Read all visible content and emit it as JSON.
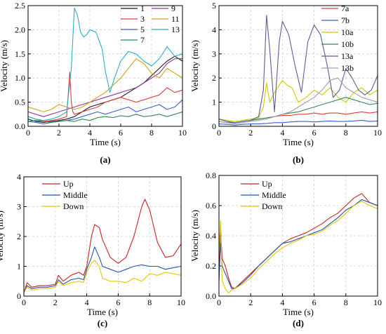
{
  "chart_data": [
    {
      "type": "line",
      "caption": "(a)",
      "xlabel": "Time (s)",
      "ylabel": "Velocity (m/s)",
      "xlim": [
        0,
        10
      ],
      "ylim": [
        0,
        2.5
      ],
      "xticks": [
        "0",
        "2",
        "4",
        "6",
        "8",
        "10"
      ],
      "yticks": [
        "0.0",
        "0.5",
        "1.0",
        "1.5",
        "2.0",
        "2.5"
      ],
      "grid": true,
      "legend": {
        "placement": "top-right",
        "columns": 2
      },
      "series": [
        {
          "name": "1",
          "color": "#1a1a1a",
          "x": [
            0,
            0.5,
            1,
            1.5,
            2,
            2.5,
            3,
            3.5,
            4,
            4.5,
            5,
            5.5,
            6,
            6.5,
            7,
            7.5,
            8,
            8.5,
            9,
            9.5,
            10
          ],
          "y": [
            0.15,
            0.1,
            0.08,
            0.1,
            0.12,
            0.15,
            0.2,
            0.3,
            0.4,
            0.45,
            0.5,
            0.55,
            0.6,
            0.7,
            0.8,
            0.9,
            1.05,
            1.2,
            1.35,
            1.45,
            1.35
          ]
        },
        {
          "name": "3",
          "color": "#e03c3c",
          "x": [
            0,
            0.5,
            1,
            1.5,
            2,
            2.5,
            2.7,
            2.8,
            2.9,
            3,
            3.5,
            4,
            4.5,
            5,
            5.5,
            6,
            6.5,
            7,
            7.5,
            8,
            8.5,
            9,
            9.5,
            10
          ],
          "y": [
            0.2,
            0.15,
            0.1,
            0.12,
            0.15,
            0.2,
            1.12,
            0.5,
            0.3,
            0.25,
            0.3,
            0.35,
            0.4,
            0.5,
            0.55,
            0.6,
            0.55,
            0.5,
            0.55,
            0.6,
            0.65,
            0.8,
            0.7,
            0.75
          ]
        },
        {
          "name": "5",
          "color": "#3a5fcd",
          "x": [
            0,
            0.5,
            1,
            1.5,
            2,
            2.5,
            3,
            3.5,
            4,
            4.5,
            5,
            5.5,
            6,
            6.5,
            7,
            7.5,
            8,
            8.5,
            9,
            9.5,
            10
          ],
          "y": [
            0.1,
            0.08,
            0.05,
            0.08,
            0.1,
            0.12,
            0.15,
            0.2,
            0.25,
            0.3,
            0.25,
            0.3,
            0.35,
            0.4,
            0.3,
            0.35,
            0.4,
            0.45,
            0.35,
            0.4,
            0.55
          ]
        },
        {
          "name": "7",
          "color": "#2e8b57",
          "x": [
            0,
            0.5,
            1,
            1.5,
            2,
            2.5,
            3,
            3.5,
            4,
            4.5,
            5,
            5.5,
            6,
            6.5,
            7,
            7.5,
            8,
            8.5,
            9,
            9.5,
            10
          ],
          "y": [
            0.1,
            0.12,
            0.1,
            0.08,
            0.1,
            0.12,
            0.1,
            0.15,
            0.12,
            0.18,
            0.2,
            0.18,
            0.22,
            0.2,
            0.25,
            0.2,
            0.22,
            0.25,
            0.2,
            0.25,
            0.3
          ]
        },
        {
          "name": "9",
          "color": "#8b3a9c",
          "x": [
            0,
            0.5,
            1,
            1.5,
            2,
            2.5,
            3,
            3.5,
            4,
            4.5,
            5,
            5.5,
            6,
            6.5,
            7,
            7.5,
            8,
            8.5,
            9,
            9.5,
            10
          ],
          "y": [
            0.3,
            0.25,
            0.2,
            0.25,
            0.3,
            0.35,
            0.4,
            0.45,
            0.5,
            0.55,
            0.6,
            0.65,
            0.7,
            0.75,
            0.8,
            0.9,
            1.0,
            1.1,
            1.3,
            1.4,
            1.4
          ]
        },
        {
          "name": "11",
          "color": "#d4a017",
          "x": [
            0,
            0.5,
            1,
            1.5,
            2,
            2.5,
            3,
            3.5,
            4,
            4.5,
            5,
            5.5,
            6,
            6.5,
            7,
            7.5,
            8,
            8.5,
            9,
            9.5,
            10
          ],
          "y": [
            0.4,
            0.35,
            0.3,
            0.35,
            0.45,
            0.4,
            0.35,
            0.4,
            0.5,
            0.6,
            0.7,
            0.85,
            1.0,
            1.2,
            1.4,
            1.3,
            1.1,
            1.0,
            1.2,
            1.1,
            1.0
          ]
        },
        {
          "name": "13",
          "color": "#2ab0c8",
          "x": [
            0,
            0.5,
            1,
            1.5,
            2,
            2.5,
            2.8,
            3.0,
            3.2,
            3.4,
            3.6,
            3.8,
            4.0,
            4.4,
            4.8,
            5.0,
            5.3,
            5.6,
            6.0,
            6.5,
            7.0,
            7.5,
            8.0,
            8.5,
            9.0,
            9.5,
            10
          ],
          "y": [
            0.2,
            0.15,
            0.12,
            0.15,
            0.2,
            0.3,
            1.2,
            2.45,
            2.3,
            1.95,
            1.85,
            1.9,
            2.0,
            1.95,
            1.6,
            1.15,
            0.7,
            1.0,
            1.35,
            1.55,
            1.5,
            1.35,
            1.25,
            1.4,
            1.65,
            1.45,
            1.5
          ]
        }
      ]
    },
    {
      "type": "line",
      "caption": "(b)",
      "xlabel": "Time (s)",
      "ylabel": "Velocity (m/s)",
      "xlim": [
        0,
        10
      ],
      "ylim": [
        0,
        5
      ],
      "xticks": [
        "0",
        "2",
        "4",
        "6",
        "8",
        "10"
      ],
      "yticks": [
        "0",
        "1",
        "2",
        "3",
        "4",
        "5"
      ],
      "grid": true,
      "legend": {
        "placement": "top-right",
        "columns": 1
      },
      "series": [
        {
          "name": "7a",
          "color": "#e03c3c",
          "x": [
            0,
            0.5,
            1,
            1.5,
            2,
            2.5,
            3,
            3.5,
            4,
            4.5,
            5,
            5.5,
            6,
            6.5,
            7,
            7.5,
            8,
            8.5,
            9,
            9.5,
            10
          ],
          "y": [
            0.3,
            0.2,
            0.15,
            0.2,
            0.25,
            0.3,
            0.35,
            0.4,
            0.45,
            0.45,
            0.5,
            0.5,
            0.55,
            0.5,
            0.55,
            0.55,
            0.5,
            0.55,
            0.6,
            0.55,
            0.6
          ]
        },
        {
          "name": "7b",
          "color": "#3a5fcd",
          "x": [
            0,
            0.5,
            1,
            1.5,
            2,
            2.5,
            3,
            3.5,
            4,
            4.5,
            5,
            5.5,
            6,
            6.5,
            7,
            7.5,
            8,
            8.5,
            9,
            9.5,
            10
          ],
          "y": [
            0.1,
            0.08,
            0.05,
            0.08,
            0.1,
            0.1,
            0.12,
            0.15,
            0.15,
            0.18,
            0.2,
            0.2,
            0.18,
            0.2,
            0.22,
            0.2,
            0.2,
            0.22,
            0.25,
            0.2,
            0.22
          ]
        },
        {
          "name": "10a",
          "color": "#d4c800",
          "x": [
            0,
            0.5,
            1,
            1.5,
            2,
            2.5,
            2.8,
            3.0,
            3.2,
            3.5,
            4.0,
            4.3,
            4.6,
            5.0,
            5.5,
            6.0,
            6.5,
            7.0,
            7.5,
            8.0,
            8.5,
            9.0,
            9.5,
            10
          ],
          "y": [
            0.3,
            0.25,
            0.2,
            0.25,
            0.3,
            0.35,
            0.8,
            1.8,
            1.0,
            1.4,
            1.9,
            1.7,
            1.6,
            1.0,
            1.2,
            1.5,
            1.3,
            1.6,
            1.2,
            1.0,
            1.4,
            1.6,
            1.3,
            1.5
          ]
        },
        {
          "name": "10b",
          "color": "#2e8b57",
          "x": [
            0,
            0.5,
            1,
            1.5,
            2,
            2.5,
            3,
            3.5,
            4,
            4.5,
            5,
            5.5,
            6,
            6.5,
            7,
            7.5,
            8,
            8.5,
            9,
            9.5,
            10
          ],
          "y": [
            0.2,
            0.15,
            0.15,
            0.2,
            0.25,
            0.3,
            0.35,
            0.4,
            0.5,
            0.55,
            0.6,
            0.7,
            0.8,
            0.9,
            1.0,
            1.1,
            1.2,
            1.1,
            1.0,
            0.9,
            0.95
          ]
        },
        {
          "name": "13a",
          "color": "#5c5c9c",
          "x": [
            0,
            0.5,
            1,
            1.5,
            2,
            2.5,
            2.8,
            3.0,
            3.2,
            3.5,
            3.8,
            4.0,
            4.4,
            4.8,
            5.2,
            5.6,
            6.0,
            6.4,
            6.8,
            7.2,
            7.6,
            8.0,
            8.4,
            8.8,
            9.2,
            9.6,
            10
          ],
          "y": [
            0.3,
            0.2,
            0.15,
            0.2,
            0.25,
            0.4,
            1.5,
            4.6,
            3.2,
            0.6,
            3.5,
            4.35,
            3.8,
            2.5,
            1.4,
            3.5,
            4.2,
            3.8,
            2.6,
            1.2,
            1.5,
            2.4,
            2.0,
            1.5,
            1.3,
            1.5,
            2.1
          ]
        },
        {
          "name": "13b",
          "color": "#a0a0b0",
          "x": [
            0,
            0.5,
            1,
            1.5,
            2,
            2.5,
            3,
            3.5,
            4,
            4.5,
            5,
            5.5,
            6,
            6.5,
            7,
            7.5,
            8,
            8.5,
            9,
            9.5,
            10
          ],
          "y": [
            0.2,
            0.15,
            0.1,
            0.15,
            0.2,
            0.25,
            0.3,
            0.4,
            0.5,
            0.6,
            0.8,
            1.0,
            1.2,
            1.5,
            1.9,
            2.0,
            1.6,
            1.4,
            1.2,
            1.1,
            1.0
          ]
        }
      ]
    },
    {
      "type": "line",
      "caption": "(c)",
      "xlabel": "Time (s)",
      "ylabel": "Velocity (m/s)",
      "xlim": [
        0,
        10
      ],
      "ylim": [
        0,
        4
      ],
      "xticks": [
        "0",
        "2",
        "4",
        "6",
        "8",
        "10"
      ],
      "yticks": [
        "0",
        "1",
        "2",
        "3",
        "4"
      ],
      "grid": true,
      "legend": {
        "placement": "top-left",
        "columns": 1
      },
      "series": [
        {
          "name": "Up",
          "color": "#cc2222",
          "x": [
            0,
            0.2,
            0.5,
            1,
            1.5,
            2,
            2.2,
            2.5,
            3,
            3.5,
            3.8,
            4,
            4.3,
            4.5,
            4.8,
            5,
            5.5,
            6,
            6.5,
            7,
            7.5,
            7.7,
            8,
            8.5,
            9,
            9.5,
            10
          ],
          "y": [
            0.1,
            0.45,
            0.3,
            0.35,
            0.35,
            0.4,
            0.7,
            0.5,
            0.7,
            0.8,
            0.7,
            1.0,
            2.0,
            2.4,
            2.3,
            1.9,
            1.3,
            1.1,
            1.3,
            2.0,
            3.0,
            3.25,
            2.9,
            1.8,
            1.3,
            1.35,
            1.75
          ]
        },
        {
          "name": "Middle",
          "color": "#2255aa",
          "x": [
            0,
            0.2,
            0.5,
            1,
            1.5,
            2,
            2.2,
            2.5,
            3,
            3.5,
            3.8,
            4,
            4.3,
            4.5,
            4.8,
            5,
            5.5,
            6,
            6.5,
            7,
            7.5,
            8,
            8.5,
            9,
            9.5,
            10
          ],
          "y": [
            0.1,
            0.35,
            0.25,
            0.3,
            0.3,
            0.35,
            0.55,
            0.4,
            0.55,
            0.6,
            0.55,
            0.9,
            1.3,
            1.65,
            1.3,
            1.0,
            0.9,
            0.8,
            0.9,
            1.0,
            1.05,
            1.0,
            1.0,
            0.9,
            0.95,
            1.0
          ]
        },
        {
          "name": "Down",
          "color": "#e8c800",
          "x": [
            0,
            0.2,
            0.5,
            1,
            1.5,
            2,
            2.2,
            2.5,
            3,
            3.5,
            3.8,
            4,
            4.3,
            4.5,
            4.8,
            5,
            5.5,
            6,
            6.5,
            7,
            7.5,
            8,
            8.5,
            9,
            9.5,
            10
          ],
          "y": [
            0.1,
            0.3,
            0.2,
            0.25,
            0.25,
            0.3,
            0.5,
            0.35,
            0.45,
            0.5,
            0.45,
            0.8,
            1.1,
            1.2,
            1.0,
            0.6,
            0.5,
            0.5,
            0.45,
            0.6,
            0.5,
            0.75,
            0.7,
            0.8,
            0.75,
            0.7
          ]
        }
      ]
    },
    {
      "type": "line",
      "caption": "(d)",
      "xlabel": "Time (s)",
      "ylabel": "Velocity (m/s)",
      "xlim": [
        0,
        10
      ],
      "ylim": [
        0,
        0.8
      ],
      "xticks": [
        "0",
        "2",
        "4",
        "6",
        "8",
        "10"
      ],
      "yticks": [
        "0.0",
        "0.2",
        "0.4",
        "0.6",
        "0.8"
      ],
      "grid": true,
      "legend": {
        "placement": "top-left",
        "columns": 1
      },
      "series": [
        {
          "name": "Up",
          "color": "#cc2222",
          "x": [
            0,
            0.1,
            0.2,
            0.4,
            0.6,
            0.8,
            1.0,
            1.5,
            2,
            2.5,
            3,
            3.5,
            4,
            4.5,
            5,
            5.5,
            6,
            6.5,
            7,
            7.5,
            8,
            8.5,
            9,
            9.5,
            10
          ],
          "y": [
            0.1,
            0.45,
            0.25,
            0.2,
            0.12,
            0.06,
            0.05,
            0.1,
            0.15,
            0.2,
            0.25,
            0.3,
            0.35,
            0.38,
            0.4,
            0.42,
            0.45,
            0.48,
            0.52,
            0.55,
            0.6,
            0.65,
            0.68,
            0.62,
            0.6
          ]
        },
        {
          "name": "Middle",
          "color": "#2255aa",
          "x": [
            0,
            0.1,
            0.2,
            0.4,
            0.6,
            0.8,
            1.0,
            1.5,
            2,
            2.5,
            3,
            3.5,
            4,
            4.5,
            5,
            5.5,
            6,
            6.5,
            7,
            7.5,
            8,
            8.5,
            9,
            9.5,
            10
          ],
          "y": [
            0.1,
            0.35,
            0.2,
            0.15,
            0.1,
            0.05,
            0.05,
            0.09,
            0.14,
            0.2,
            0.25,
            0.3,
            0.35,
            0.36,
            0.38,
            0.4,
            0.42,
            0.44,
            0.48,
            0.52,
            0.57,
            0.6,
            0.64,
            0.62,
            0.6
          ]
        },
        {
          "name": "Down",
          "color": "#e8c800",
          "x": [
            0,
            0.1,
            0.2,
            0.4,
            0.6,
            0.8,
            1.0,
            1.5,
            2,
            2.5,
            3,
            3.5,
            4,
            4.5,
            5,
            5.5,
            6,
            6.5,
            7,
            7.5,
            8,
            8.5,
            9,
            9.5,
            10
          ],
          "y": [
            0.3,
            0.5,
            0.1,
            0.05,
            0.02,
            0.04,
            0.05,
            0.08,
            0.12,
            0.18,
            0.23,
            0.28,
            0.32,
            0.35,
            0.37,
            0.4,
            0.41,
            0.43,
            0.47,
            0.5,
            0.55,
            0.6,
            0.63,
            0.6,
            0.58
          ]
        }
      ]
    }
  ]
}
